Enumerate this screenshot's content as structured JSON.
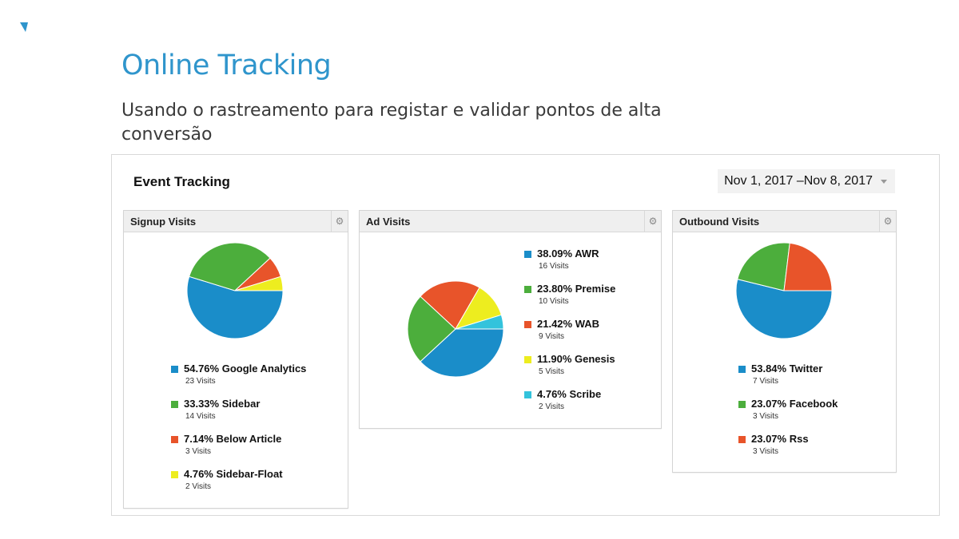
{
  "slide": {
    "title": "Online Tracking",
    "subtitle": "Usando o rastreamento para registar e validar pontos de alta conversão"
  },
  "report": {
    "title": "Event Tracking",
    "date_range": "Nov 1, 2017 –Nov 8, 2017",
    "gear_icon_name": "gear-icon"
  },
  "widgets": [
    {
      "title": "Signup Visits",
      "items": [
        {
          "label": "54.76% Google Analytics",
          "visits": "23 Visits",
          "value": 54.76,
          "color": "#1a8dc9"
        },
        {
          "label": "33.33% Sidebar",
          "visits": "14 Visits",
          "value": 33.33,
          "color": "#4cae3c"
        },
        {
          "label": "7.14% Below Article",
          "visits": "3 Visits",
          "value": 7.14,
          "color": "#e8542a"
        },
        {
          "label": "4.76% Sidebar-Float",
          "visits": "2 Visits",
          "value": 4.76,
          "color": "#eded1f"
        }
      ]
    },
    {
      "title": "Ad Visits",
      "items": [
        {
          "label": "38.09% AWR",
          "visits": "16 Visits",
          "value": 38.09,
          "color": "#1a8dc9"
        },
        {
          "label": "23.80% Premise",
          "visits": "10 Visits",
          "value": 23.8,
          "color": "#4cae3c"
        },
        {
          "label": "21.42% WAB",
          "visits": "9 Visits",
          "value": 21.42,
          "color": "#e8542a"
        },
        {
          "label": "11.90% Genesis",
          "visits": "5 Visits",
          "value": 11.9,
          "color": "#eded1f"
        },
        {
          "label": "4.76% Scribe",
          "visits": "2 Visits",
          "value": 4.76,
          "color": "#33c3dc"
        }
      ]
    },
    {
      "title": "Outbound Visits",
      "items": [
        {
          "label": "53.84% Twitter",
          "visits": "7 Visits",
          "value": 53.84,
          "color": "#1a8dc9"
        },
        {
          "label": "23.07% Facebook",
          "visits": "3 Visits",
          "value": 23.07,
          "color": "#4cae3c"
        },
        {
          "label": "23.07% Rss",
          "visits": "3 Visits",
          "value": 23.07,
          "color": "#e8542a"
        }
      ]
    }
  ]
}
